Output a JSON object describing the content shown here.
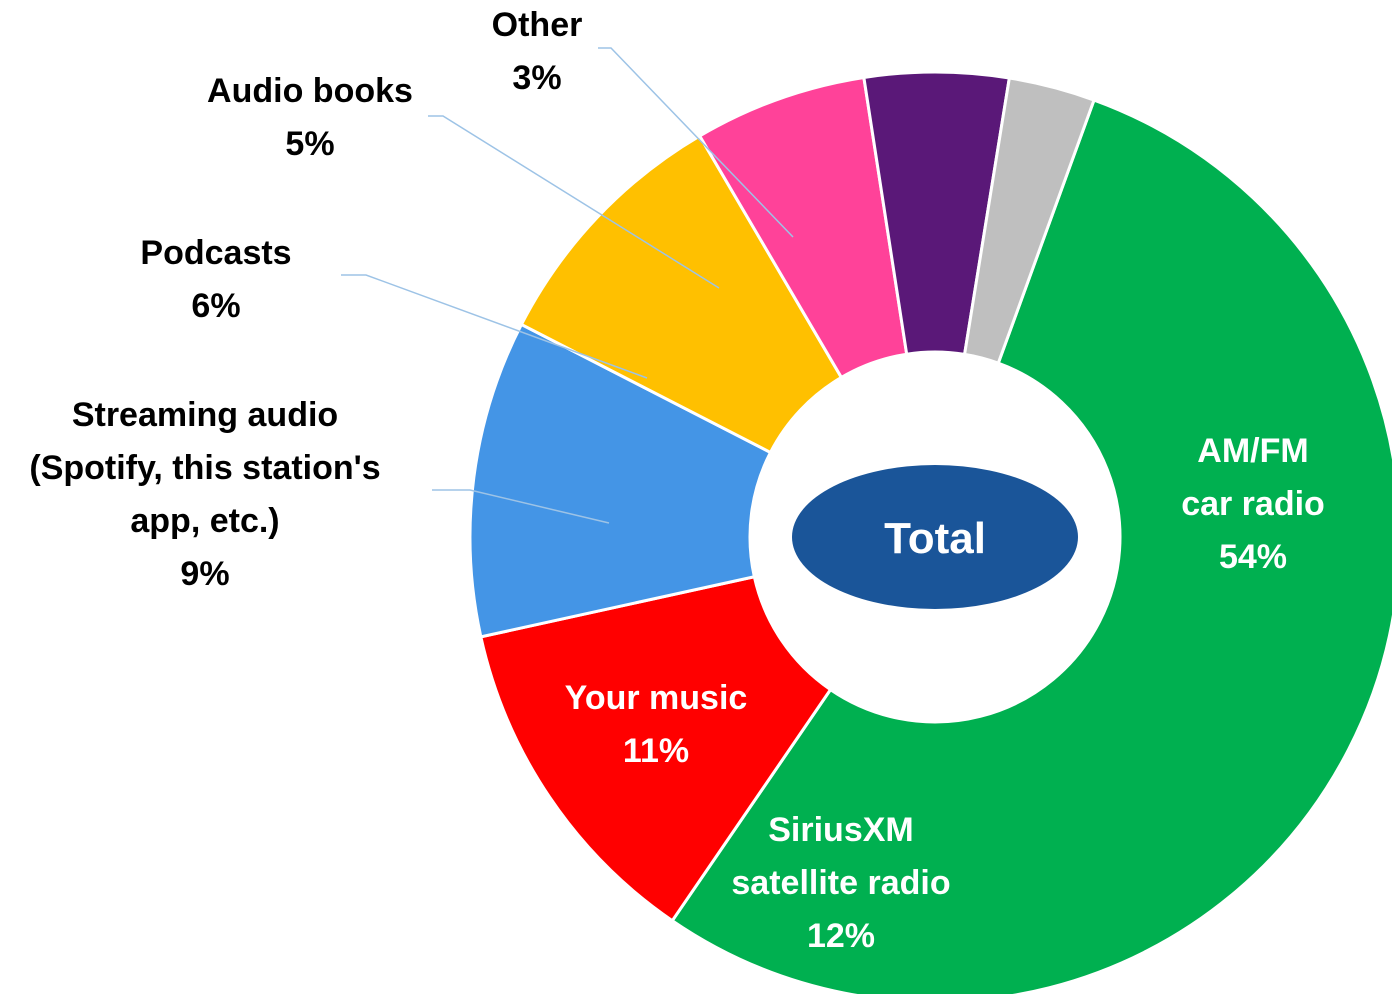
{
  "chart_data": {
    "type": "pie",
    "variant": "donut",
    "center_label": "Total",
    "slices": [
      {
        "lines": [
          "AM/FM",
          "car radio",
          "54%"
        ],
        "value": 54,
        "color": "#00b050",
        "label_position": "inside"
      },
      {
        "lines": [
          "SiriusXM",
          "satellite radio",
          "12%"
        ],
        "value": 12,
        "color": "#ff0000",
        "label_position": "inside"
      },
      {
        "lines": [
          "Your music",
          "11%"
        ],
        "value": 11,
        "color": "#4495e6",
        "label_position": "inside"
      },
      {
        "lines": [
          "Streaming audio",
          "(Spotify, this station's",
          "app, etc.)",
          "9%"
        ],
        "value": 9,
        "color": "#ffc000",
        "label_position": "outside"
      },
      {
        "lines": [
          "Podcasts",
          "6%"
        ],
        "value": 6,
        "color": "#ff4299",
        "label_position": "outside"
      },
      {
        "lines": [
          "Audio books",
          "5%"
        ],
        "value": 5,
        "color": "#5a1878",
        "label_position": "outside"
      },
      {
        "lines": [
          "Other",
          "3%"
        ],
        "value": 3,
        "color": "#bfbfbf",
        "label_position": "outside"
      }
    ],
    "center_color": "#1a5599",
    "leader_line_color": "#9dc3e6",
    "legend": "none"
  }
}
